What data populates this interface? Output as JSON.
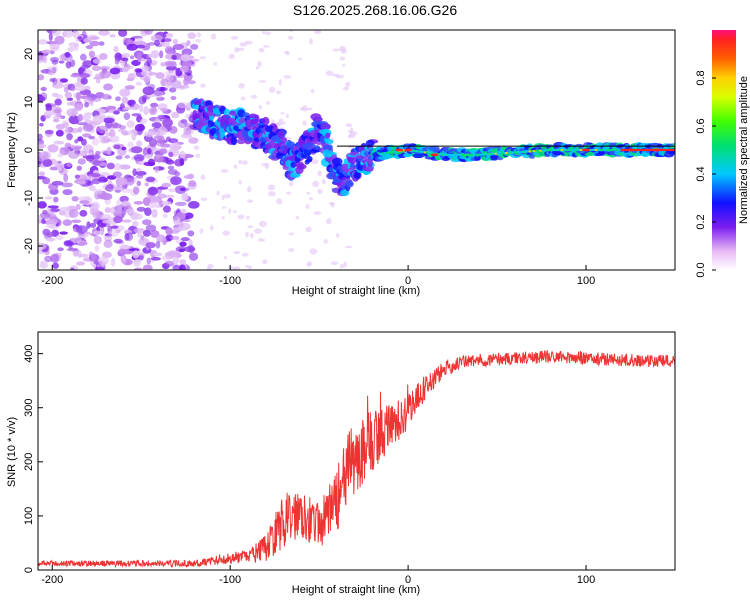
{
  "title": "S126.2025.268.16.06.G26",
  "chart_data": [
    {
      "type": "heatmap",
      "name": "spectrogram",
      "xlabel": "Height of straight line (km)",
      "ylabel": "Frequency (Hz)",
      "xlim": [
        -208,
        150
      ],
      "ylim": [
        -25,
        25
      ],
      "xticks": [
        -200,
        -100,
        0,
        100
      ],
      "yticks": [
        -20,
        -10,
        0,
        10,
        20
      ],
      "colorbar": {
        "label": "Normalized spectral amplitude",
        "range": [
          0,
          1
        ],
        "ticks": [
          "0.0",
          "0.2",
          "0.4",
          "0.6",
          "0.8"
        ]
      },
      "noise_region_x": [
        -208,
        -120
      ],
      "signal_track": [
        {
          "x": -120,
          "y": 8
        },
        {
          "x": -110,
          "y": 6
        },
        {
          "x": -100,
          "y": 5
        },
        {
          "x": -90,
          "y": 5
        },
        {
          "x": -80,
          "y": 3
        },
        {
          "x": -70,
          "y": 0
        },
        {
          "x": -65,
          "y": -3
        },
        {
          "x": -55,
          "y": 1
        },
        {
          "x": -50,
          "y": 5
        },
        {
          "x": -45,
          "y": 0
        },
        {
          "x": -38,
          "y": -7
        },
        {
          "x": -30,
          "y": -3
        },
        {
          "x": -20,
          "y": -1
        },
        {
          "x": -10,
          "y": -0.5
        },
        {
          "x": 0,
          "y": 0
        },
        {
          "x": 20,
          "y": -1
        },
        {
          "x": 40,
          "y": -1
        },
        {
          "x": 60,
          "y": -0.5
        },
        {
          "x": 80,
          "y": 0
        },
        {
          "x": 100,
          "y": 0
        },
        {
          "x": 120,
          "y": 0
        },
        {
          "x": 150,
          "y": 0
        }
      ],
      "reference_line_y": 0.8
    },
    {
      "type": "line",
      "name": "snr",
      "xlabel": "Height of straight line (km)",
      "ylabel": "SNR (10 * v/v)",
      "xlim": [
        -208,
        150
      ],
      "ylim": [
        0,
        440
      ],
      "xticks": [
        -200,
        -100,
        0,
        100
      ],
      "yticks": [
        0,
        100,
        200,
        300,
        400
      ],
      "color": "#ee3333",
      "envelope": [
        {
          "x": -208,
          "mean": 12,
          "spread": 5
        },
        {
          "x": -120,
          "mean": 12,
          "spread": 6
        },
        {
          "x": -105,
          "mean": 20,
          "spread": 10
        },
        {
          "x": -90,
          "mean": 25,
          "spread": 12
        },
        {
          "x": -80,
          "mean": 40,
          "spread": 25
        },
        {
          "x": -70,
          "mean": 90,
          "spread": 50
        },
        {
          "x": -60,
          "mean": 110,
          "spread": 50
        },
        {
          "x": -50,
          "mean": 80,
          "spread": 40
        },
        {
          "x": -40,
          "mean": 130,
          "spread": 60
        },
        {
          "x": -30,
          "mean": 210,
          "spread": 80
        },
        {
          "x": -20,
          "mean": 240,
          "spread": 60
        },
        {
          "x": -10,
          "mean": 265,
          "spread": 40
        },
        {
          "x": 0,
          "mean": 290,
          "spread": 35
        },
        {
          "x": 10,
          "mean": 340,
          "spread": 25
        },
        {
          "x": 20,
          "mean": 370,
          "spread": 15
        },
        {
          "x": 30,
          "mean": 385,
          "spread": 12
        },
        {
          "x": 50,
          "mean": 390,
          "spread": 12
        },
        {
          "x": 80,
          "mean": 395,
          "spread": 12
        },
        {
          "x": 110,
          "mean": 390,
          "spread": 12
        },
        {
          "x": 150,
          "mean": 385,
          "spread": 12
        }
      ]
    }
  ]
}
